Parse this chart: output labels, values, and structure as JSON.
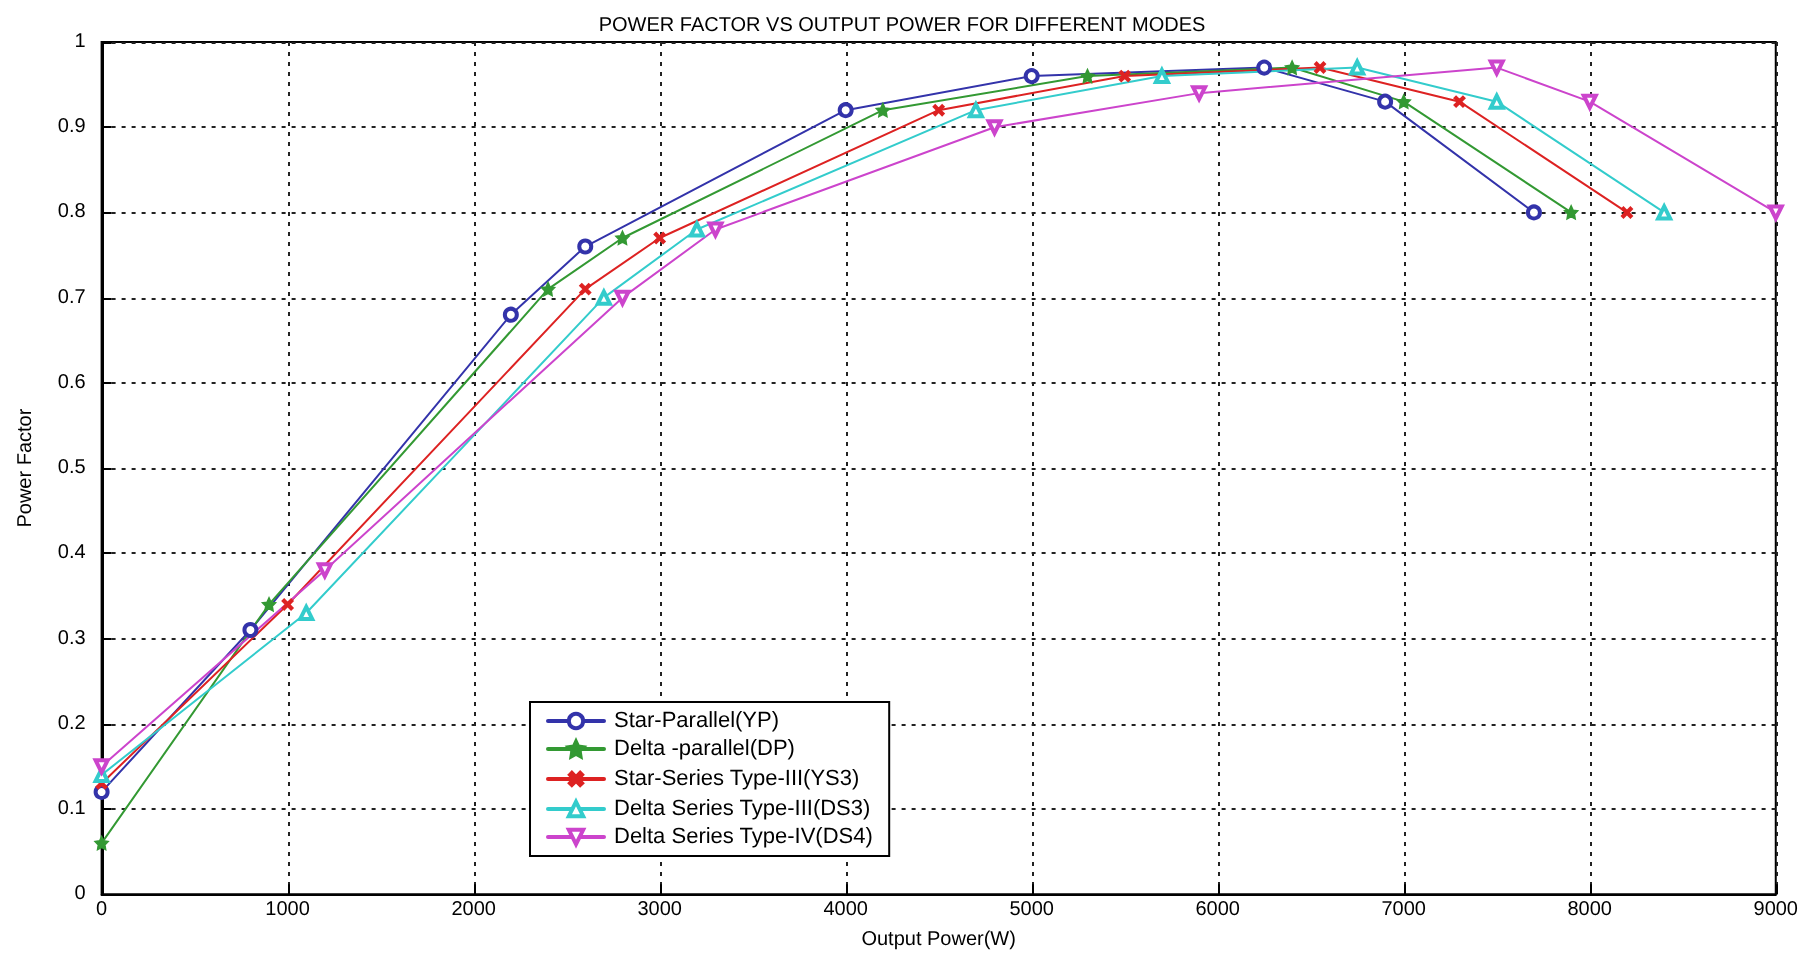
{
  "chart_data": {
    "type": "line",
    "title": "POWER FACTOR VS OUTPUT POWER FOR DIFFERENT MODES",
    "xlabel": "Output Power(W)",
    "ylabel": "Power Factor",
    "xlim": [
      0,
      9000
    ],
    "xticks": [
      0,
      1000,
      2000,
      3000,
      4000,
      5000,
      6000,
      7000,
      8000,
      9000
    ],
    "ylim": [
      0,
      1
    ],
    "yticks": [
      0,
      0.1,
      0.2,
      0.3,
      0.4,
      0.5,
      0.6,
      0.7,
      0.8,
      0.9,
      1
    ],
    "grid": true,
    "legend": "bottom left",
    "line_style": "solid",
    "series": [
      {
        "name": "Star-Parallel(YP)",
        "color": "#3333aa",
        "marker": "circle",
        "x": [
          0,
          800,
          2200,
          2600,
          4000,
          5000,
          6250,
          6900,
          7700
        ],
        "values": [
          0.12,
          0.31,
          0.68,
          0.76,
          0.92,
          0.96,
          0.97,
          0.93,
          0.8
        ]
      },
      {
        "name": "Delta -parallel(DP)",
        "color": "#339933",
        "marker": "star",
        "x": [
          0,
          900,
          2400,
          2800,
          4200,
          5300,
          6400,
          7000,
          7900
        ],
        "values": [
          0.06,
          0.34,
          0.71,
          0.77,
          0.92,
          0.96,
          0.97,
          0.93,
          0.8
        ]
      },
      {
        "name": "Star-Series Type-III(YS3)",
        "color": "#dd2222",
        "marker": "cross",
        "x": [
          0,
          1000,
          2600,
          3000,
          4500,
          5500,
          6550,
          7300,
          8200
        ],
        "values": [
          0.13,
          0.34,
          0.71,
          0.77,
          0.92,
          0.96,
          0.97,
          0.93,
          0.8
        ]
      },
      {
        "name": "Delta Series Type-III(DS3)",
        "color": "#33cccc",
        "marker": "triangle",
        "x": [
          0,
          1100,
          2700,
          3200,
          4700,
          5700,
          6750,
          7500,
          8400
        ],
        "values": [
          0.14,
          0.33,
          0.7,
          0.78,
          0.92,
          0.96,
          0.97,
          0.93,
          0.8
        ]
      },
      {
        "name": "Delta Series Type-IV(DS4)",
        "color": "#cc44cc",
        "marker": "triangle-down",
        "x": [
          0,
          1200,
          2800,
          3300,
          4800,
          5900,
          7500,
          8000,
          9000
        ],
        "values": [
          0.15,
          0.38,
          0.7,
          0.78,
          0.9,
          0.94,
          0.97,
          0.93,
          0.8
        ]
      }
    ]
  }
}
